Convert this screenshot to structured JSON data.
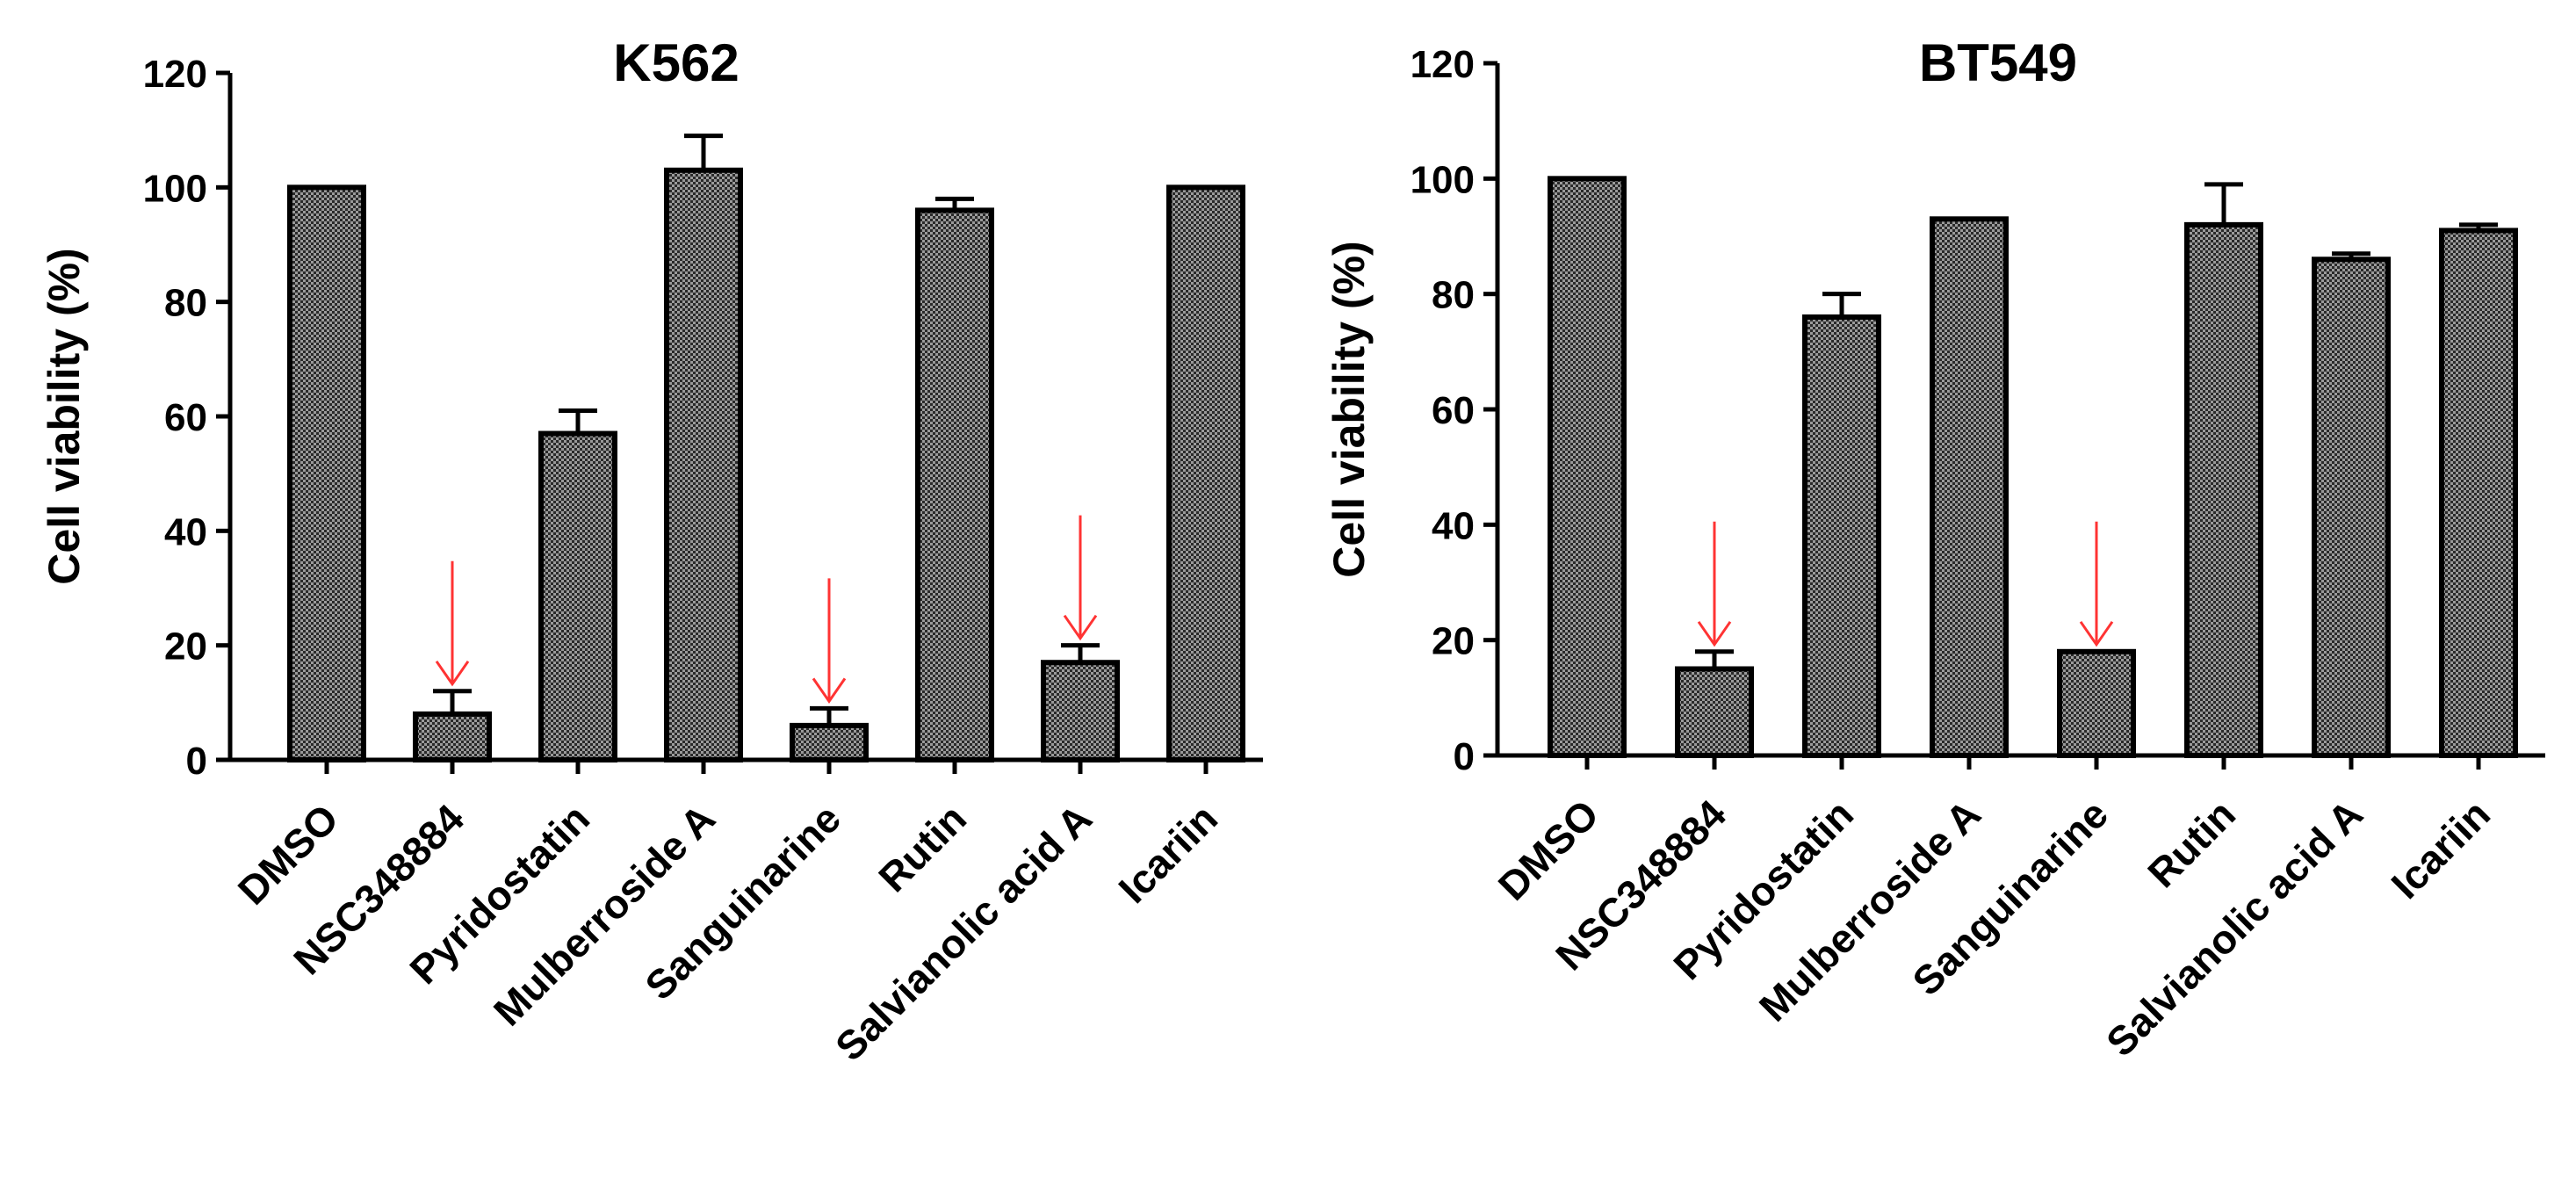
{
  "chart_data": [
    {
      "type": "bar",
      "title": "K562",
      "xlabel": "",
      "ylabel": "Cell viability (%)",
      "ylim": [
        0,
        120
      ],
      "yticks": [
        0,
        20,
        40,
        60,
        80,
        100,
        120
      ],
      "categories": [
        "DMSO",
        "NSC348884",
        "Pyridostatin",
        "Mulberroside A",
        "Sanguinarine",
        "Rutin",
        "Salvianolic acid A",
        "Icariin"
      ],
      "values": [
        100,
        8,
        57,
        103,
        6,
        96,
        17,
        100
      ],
      "errors": [
        0,
        4,
        4,
        6,
        3,
        2,
        3,
        0
      ],
      "highlighted": [
        "NSC348884",
        "Sanguinarine",
        "Salvianolic acid A"
      ],
      "highlight_color": "#ff3333",
      "bar_pattern": "checkered dark gray"
    },
    {
      "type": "bar",
      "title": "BT549",
      "xlabel": "",
      "ylabel": "Cell viability (%)",
      "ylim": [
        0,
        120
      ],
      "yticks": [
        0,
        20,
        40,
        60,
        80,
        100,
        120
      ],
      "categories": [
        "DMSO",
        "NSC348884",
        "Pyridostatin",
        "Mulberroside A",
        "Sanguinarine",
        "Rutin",
        "Salvianolic acid A",
        "Icariin"
      ],
      "values": [
        100,
        15,
        76,
        93,
        18,
        92,
        86,
        91
      ],
      "errors": [
        0,
        3,
        4,
        0,
        0,
        7,
        1,
        1
      ],
      "highlighted": [
        "NSC348884",
        "Sanguinarine"
      ],
      "highlight_color": "#ff3333",
      "bar_pattern": "checkered dark gray"
    }
  ]
}
